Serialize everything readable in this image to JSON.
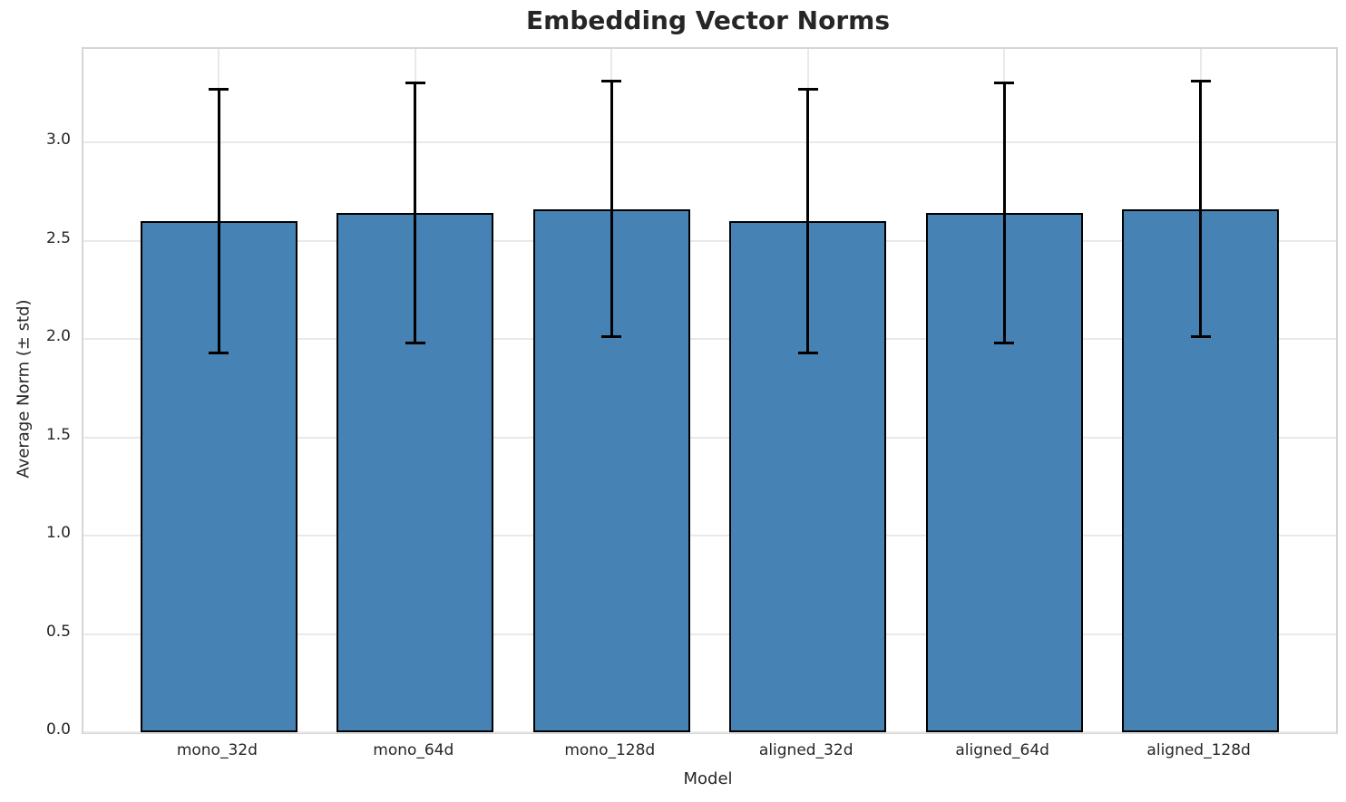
{
  "chart_data": {
    "type": "bar",
    "title": "Embedding Vector Norms",
    "xlabel": "Model",
    "ylabel": "Average Norm (± std)",
    "categories": [
      "mono_32d",
      "mono_64d",
      "mono_128d",
      "aligned_32d",
      "aligned_64d",
      "aligned_128d"
    ],
    "series": [
      {
        "name": "Average Norm",
        "values": [
          2.6,
          2.64,
          2.66,
          2.6,
          2.64,
          2.66
        ],
        "std": [
          0.67,
          0.66,
          0.65,
          0.67,
          0.66,
          0.65
        ]
      }
    ],
    "yticks": [
      0.0,
      0.5,
      1.0,
      1.5,
      2.0,
      2.5,
      3.0
    ],
    "ylim": [
      0,
      3.475
    ],
    "bar_width_fraction": 0.8,
    "grid": true,
    "legend_position": "none",
    "colors": {
      "bar_fill": "#4682b4",
      "bar_edge": "#000000",
      "error_bar": "#000000",
      "grid_line": "#e9e9e9",
      "spine": "#d5d5d5",
      "text": "#262626"
    }
  }
}
